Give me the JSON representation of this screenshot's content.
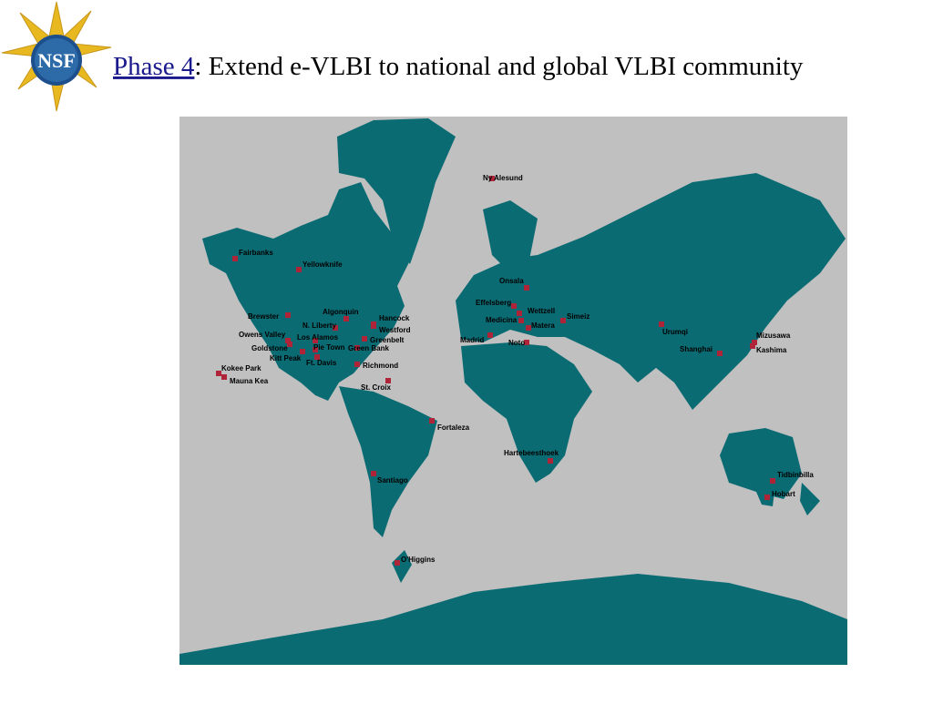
{
  "logo": {
    "text": "NSF"
  },
  "header": {
    "title_lead": "Phase 4",
    "title_rest": ": Extend e-VLBI to national and global VLBI community"
  },
  "map": {
    "stations": [
      "Ny Alesund",
      "Fairbanks",
      "Yellowknife",
      "Onsala",
      "Effelsberg",
      "Wettzell",
      "Simeiz",
      "Medicina",
      "Matera",
      "Madrid",
      "Noto",
      "Urumqi",
      "Shanghai",
      "Mizusawa",
      "Kashima",
      "Brewster",
      "Algonquin",
      "Hancock",
      "N. Liberty",
      "Westford",
      "Owens Valley",
      "Los Alamos",
      "Greenbelt",
      "Goldstone",
      "Pie Town",
      "Green Bank",
      "Kitt Peak",
      "Ft. Davis",
      "Richmond",
      "Kokee Park",
      "Mauna Kea",
      "St. Croix",
      "Fortaleza",
      "Hartebeesthoek",
      "Santiago",
      "Tidbinbilla",
      "Hobart",
      "O'Higgins"
    ]
  }
}
